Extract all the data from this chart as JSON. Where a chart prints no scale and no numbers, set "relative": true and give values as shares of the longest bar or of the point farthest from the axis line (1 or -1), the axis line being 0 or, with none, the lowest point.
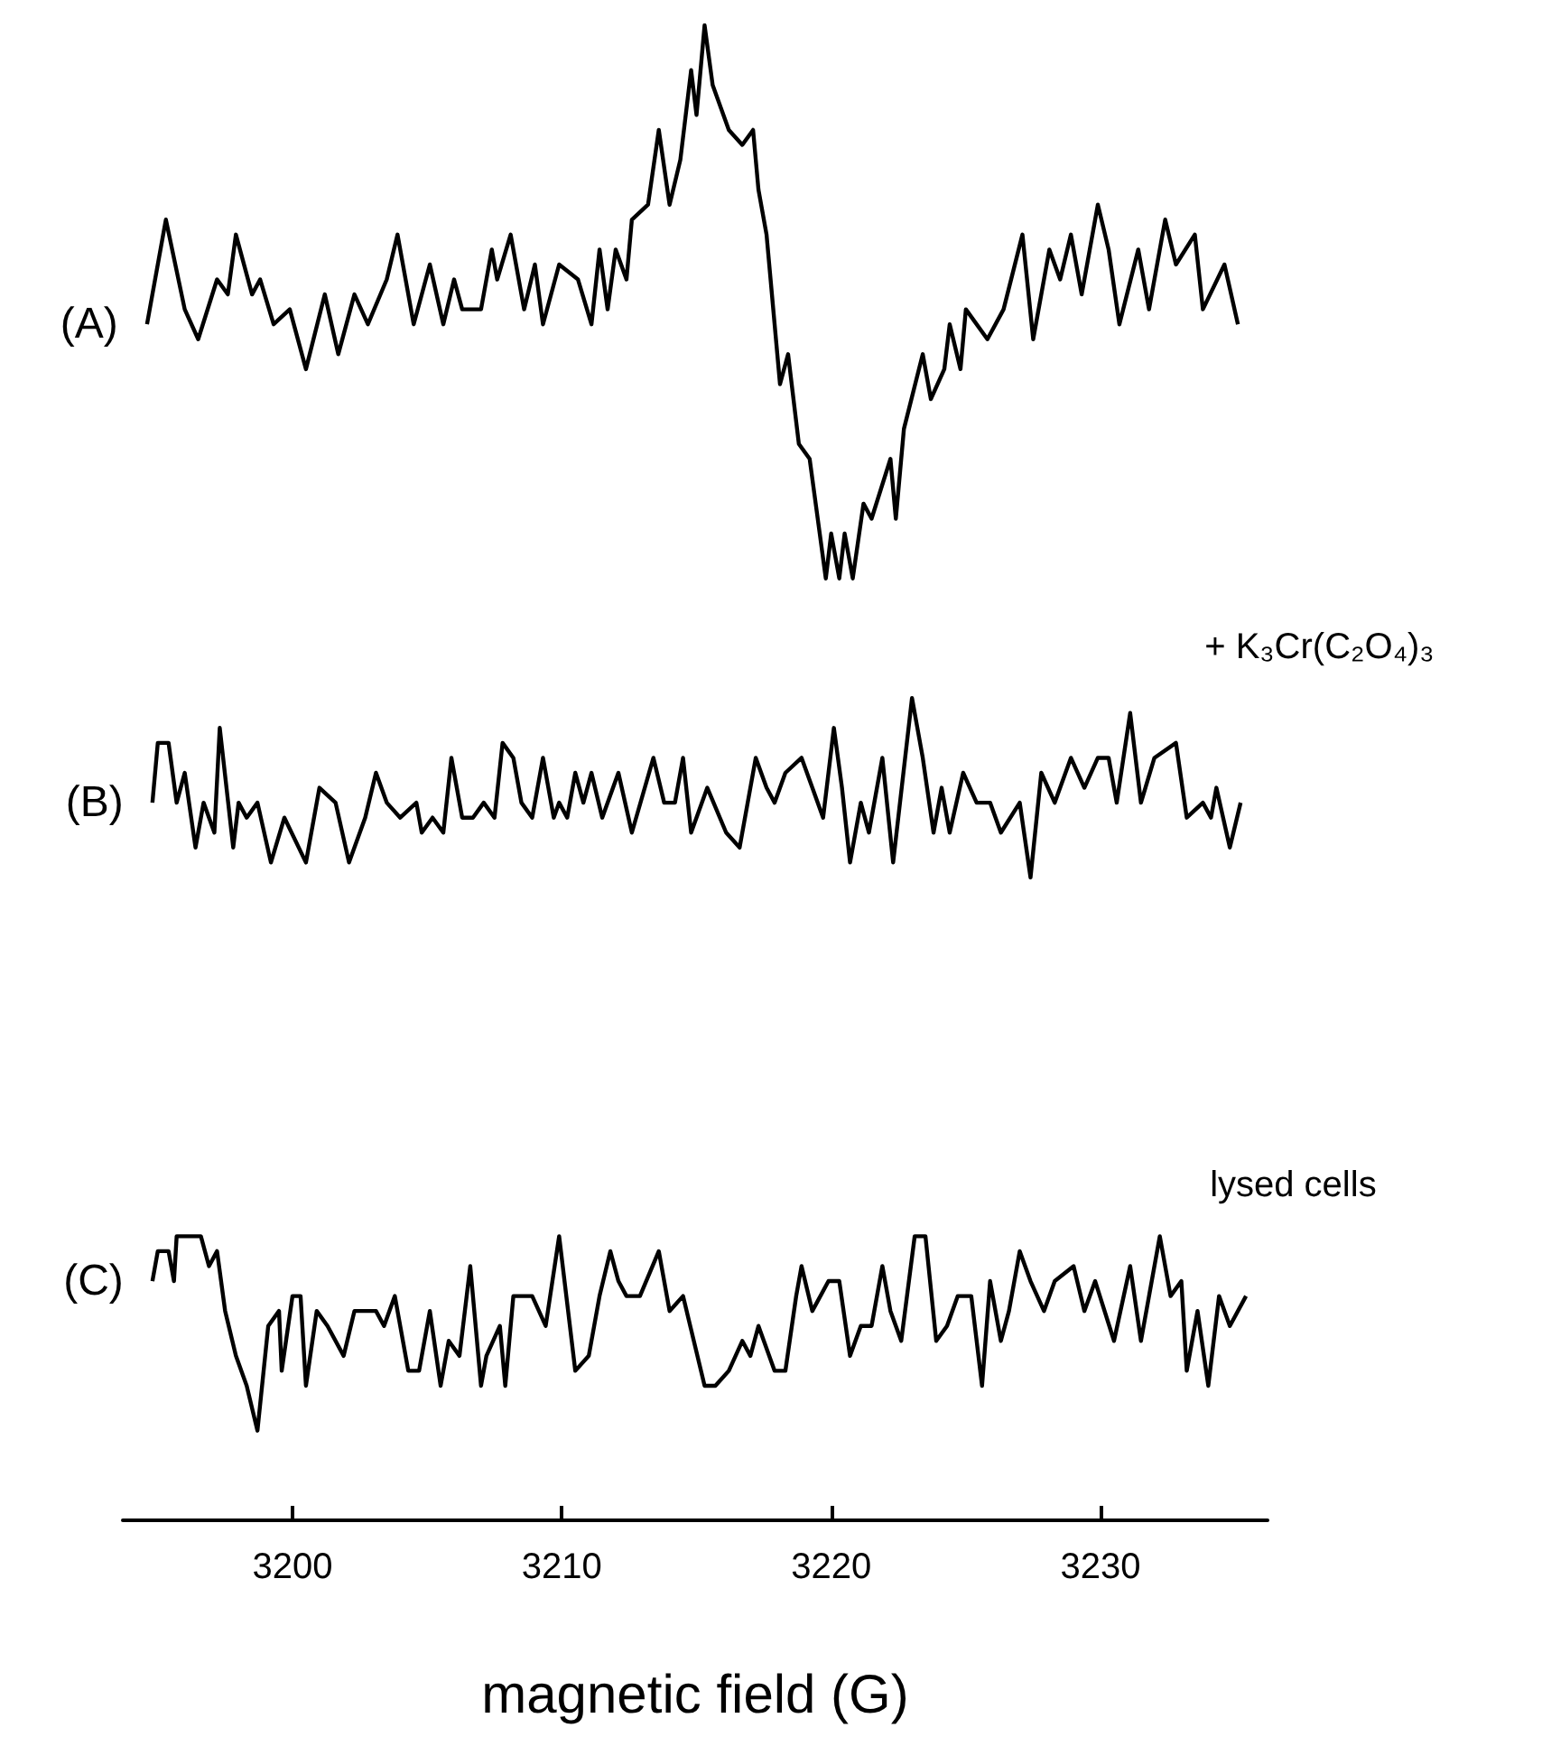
{
  "chart_data": {
    "type": "line",
    "relative": true,
    "xlabel": "magnetic field (G)",
    "xlim": [
      3193.7,
      3236.2
    ],
    "xticks": [
      3200,
      3210,
      3220,
      3230
    ],
    "marker": "none",
    "series": [
      {
        "name": "(A)",
        "color": "#000000",
        "x": [
          3194.6,
          3195.3,
          3196.0,
          3196.5,
          3197.2,
          3197.6,
          3197.9,
          3198.5,
          3198.8,
          3199.3,
          3199.9,
          3200.5,
          3201.2,
          3201.7,
          3202.3,
          3202.8,
          3203.5,
          3203.9,
          3204.5,
          3205.1,
          3205.6,
          3206.0,
          3206.3,
          3207.0,
          3207.4,
          3207.6,
          3208.1,
          3208.6,
          3209.0,
          3209.3,
          3209.9,
          3210.6,
          3211.1,
          3211.4,
          3211.7,
          3212.0,
          3212.4,
          3212.6,
          3213.2,
          3213.6,
          3214.0,
          3214.4,
          3214.8,
          3215.0,
          3215.3,
          3215.6,
          3216.2,
          3216.7,
          3217.1,
          3217.3,
          3217.6,
          3218.1,
          3218.4,
          3218.8,
          3219.2,
          3219.5,
          3219.8,
          3220.0,
          3220.3,
          3220.5,
          3220.8,
          3221.2,
          3221.5,
          3222.2,
          3222.4,
          3222.7,
          3223.4,
          3223.7,
          3224.2,
          3224.4,
          3224.8,
          3225.0,
          3225.8,
          3226.4,
          3227.1,
          3227.5,
          3228.1,
          3228.5,
          3228.9,
          3229.3,
          3229.9,
          3230.3,
          3230.7,
          3231.4,
          3231.8,
          3232.4,
          3232.8,
          3233.5,
          3233.8,
          3234.6,
          3235.1
        ],
        "values": [
          0.8,
          0.87,
          0.81,
          0.79,
          0.83,
          0.82,
          0.86,
          0.82,
          0.83,
          0.8,
          0.81,
          0.77,
          0.82,
          0.78,
          0.82,
          0.8,
          0.83,
          0.86,
          0.8,
          0.84,
          0.8,
          0.83,
          0.81,
          0.81,
          0.85,
          0.83,
          0.86,
          0.81,
          0.84,
          0.8,
          0.84,
          0.83,
          0.8,
          0.85,
          0.81,
          0.85,
          0.83,
          0.87,
          0.88,
          0.93,
          0.88,
          0.91,
          0.97,
          0.94,
          1.0,
          0.96,
          0.93,
          0.92,
          0.93,
          0.89,
          0.86,
          0.76,
          0.78,
          0.72,
          0.71,
          0.67,
          0.63,
          0.66,
          0.63,
          0.66,
          0.63,
          0.68,
          0.67,
          0.71,
          0.67,
          0.73,
          0.78,
          0.75,
          0.77,
          0.8,
          0.77,
          0.81,
          0.79,
          0.81,
          0.86,
          0.79,
          0.85,
          0.83,
          0.86,
          0.82,
          0.88,
          0.85,
          0.8,
          0.85,
          0.81,
          0.87,
          0.84,
          0.86,
          0.81,
          0.84,
          0.8
        ]
      },
      {
        "name": "(B)",
        "color": "#000000",
        "x": [
          3194.8,
          3195.0,
          3195.4,
          3195.7,
          3196.0,
          3196.4,
          3196.7,
          3197.1,
          3197.3,
          3197.8,
          3198.0,
          3198.3,
          3198.7,
          3199.2,
          3199.7,
          3200.5,
          3201.0,
          3201.6,
          3202.1,
          3202.7,
          3203.1,
          3203.5,
          3204.0,
          3204.6,
          3204.8,
          3205.2,
          3205.6,
          3205.9,
          3206.3,
          3206.7,
          3207.1,
          3207.5,
          3207.8,
          3208.2,
          3208.5,
          3208.9,
          3209.3,
          3209.7,
          3209.9,
          3210.2,
          3210.5,
          3210.8,
          3211.1,
          3211.5,
          3212.1,
          3212.6,
          3213.4,
          3213.8,
          3214.2,
          3214.5,
          3214.8,
          3215.4,
          3216.1,
          3216.6,
          3217.2,
          3217.6,
          3217.9,
          3218.3,
          3218.9,
          3219.3,
          3219.7,
          3220.1,
          3220.4,
          3220.7,
          3221.1,
          3221.4,
          3221.9,
          3222.3,
          3223.0,
          3223.4,
          3223.8,
          3224.1,
          3224.4,
          3224.9,
          3225.4,
          3225.9,
          3226.3,
          3227.0,
          3227.4,
          3227.8,
          3228.3,
          3228.9,
          3229.4,
          3229.9,
          3230.3,
          3230.6,
          3231.1,
          3231.5,
          3232.0,
          3232.8,
          3233.2,
          3233.8,
          3234.1,
          3234.3,
          3234.8,
          3235.2
        ],
        "values": [
          0.48,
          0.52,
          0.52,
          0.48,
          0.5,
          0.45,
          0.48,
          0.46,
          0.53,
          0.45,
          0.48,
          0.47,
          0.48,
          0.44,
          0.47,
          0.44,
          0.49,
          0.48,
          0.44,
          0.47,
          0.5,
          0.48,
          0.47,
          0.48,
          0.46,
          0.47,
          0.46,
          0.51,
          0.47,
          0.47,
          0.48,
          0.47,
          0.52,
          0.51,
          0.48,
          0.47,
          0.51,
          0.47,
          0.48,
          0.47,
          0.5,
          0.48,
          0.5,
          0.47,
          0.5,
          0.46,
          0.51,
          0.48,
          0.48,
          0.51,
          0.46,
          0.49,
          0.46,
          0.45,
          0.51,
          0.49,
          0.48,
          0.5,
          0.51,
          0.49,
          0.47,
          0.53,
          0.49,
          0.44,
          0.48,
          0.46,
          0.51,
          0.44,
          0.55,
          0.51,
          0.46,
          0.49,
          0.46,
          0.5,
          0.48,
          0.48,
          0.46,
          0.48,
          0.43,
          0.5,
          0.48,
          0.51,
          0.49,
          0.51,
          0.51,
          0.48,
          0.54,
          0.48,
          0.51,
          0.52,
          0.47,
          0.48,
          0.47,
          0.49,
          0.45,
          0.48
        ]
      },
      {
        "name": "(C)",
        "color": "#000000",
        "x": [
          3194.8,
          3195.0,
          3195.4,
          3195.6,
          3195.7,
          3196.1,
          3196.4,
          3196.6,
          3196.9,
          3197.2,
          3197.5,
          3197.9,
          3198.3,
          3198.7,
          3199.1,
          3199.5,
          3199.6,
          3200.0,
          3200.3,
          3200.5,
          3200.9,
          3201.3,
          3201.9,
          3202.3,
          3203.1,
          3203.4,
          3203.8,
          3204.3,
          3204.7,
          3205.1,
          3205.5,
          3205.8,
          3206.2,
          3206.6,
          3207.0,
          3207.2,
          3207.7,
          3207.9,
          3208.2,
          3208.9,
          3209.4,
          3209.9,
          3210.5,
          3211.0,
          3211.4,
          3211.8,
          3212.1,
          3212.4,
          3212.9,
          3213.6,
          3214.0,
          3214.5,
          3214.9,
          3215.3,
          3215.7,
          3216.2,
          3216.7,
          3217.0,
          3217.3,
          3217.9,
          3218.3,
          3218.7,
          3218.9,
          3219.3,
          3219.9,
          3220.3,
          3220.7,
          3221.1,
          3221.5,
          3221.9,
          3222.2,
          3222.6,
          3223.1,
          3223.5,
          3223.9,
          3224.3,
          3224.7,
          3225.2,
          3225.6,
          3225.9,
          3226.3,
          3226.6,
          3227.0,
          3227.4,
          3227.9,
          3228.3,
          3229.0,
          3229.4,
          3229.8,
          3230.5,
          3231.1,
          3231.5,
          3232.2,
          3232.6,
          3233.0,
          3233.2,
          3233.6,
          3234.0,
          3234.4,
          3234.8,
          3235.4
        ],
        "values": [
          0.16,
          0.18,
          0.18,
          0.16,
          0.19,
          0.19,
          0.19,
          0.19,
          0.17,
          0.18,
          0.14,
          0.11,
          0.09,
          0.06,
          0.13,
          0.14,
          0.1,
          0.15,
          0.15,
          0.09,
          0.14,
          0.13,
          0.11,
          0.14,
          0.14,
          0.13,
          0.15,
          0.1,
          0.1,
          0.14,
          0.09,
          0.12,
          0.11,
          0.17,
          0.09,
          0.11,
          0.13,
          0.09,
          0.15,
          0.15,
          0.13,
          0.19,
          0.1,
          0.11,
          0.15,
          0.18,
          0.16,
          0.15,
          0.15,
          0.18,
          0.14,
          0.15,
          0.12,
          0.09,
          0.09,
          0.1,
          0.12,
          0.11,
          0.13,
          0.1,
          0.1,
          0.15,
          0.17,
          0.14,
          0.16,
          0.16,
          0.11,
          0.13,
          0.13,
          0.17,
          0.14,
          0.12,
          0.19,
          0.19,
          0.12,
          0.13,
          0.15,
          0.15,
          0.09,
          0.16,
          0.12,
          0.14,
          0.18,
          0.16,
          0.14,
          0.16,
          0.17,
          0.14,
          0.16,
          0.12,
          0.17,
          0.12,
          0.19,
          0.15,
          0.16,
          0.1,
          0.14,
          0.09,
          0.15,
          0.13,
          0.15
        ]
      }
    ],
    "annotations": [
      "+ K₃Cr(C₂O₄)₃",
      "lysed cells"
    ]
  }
}
